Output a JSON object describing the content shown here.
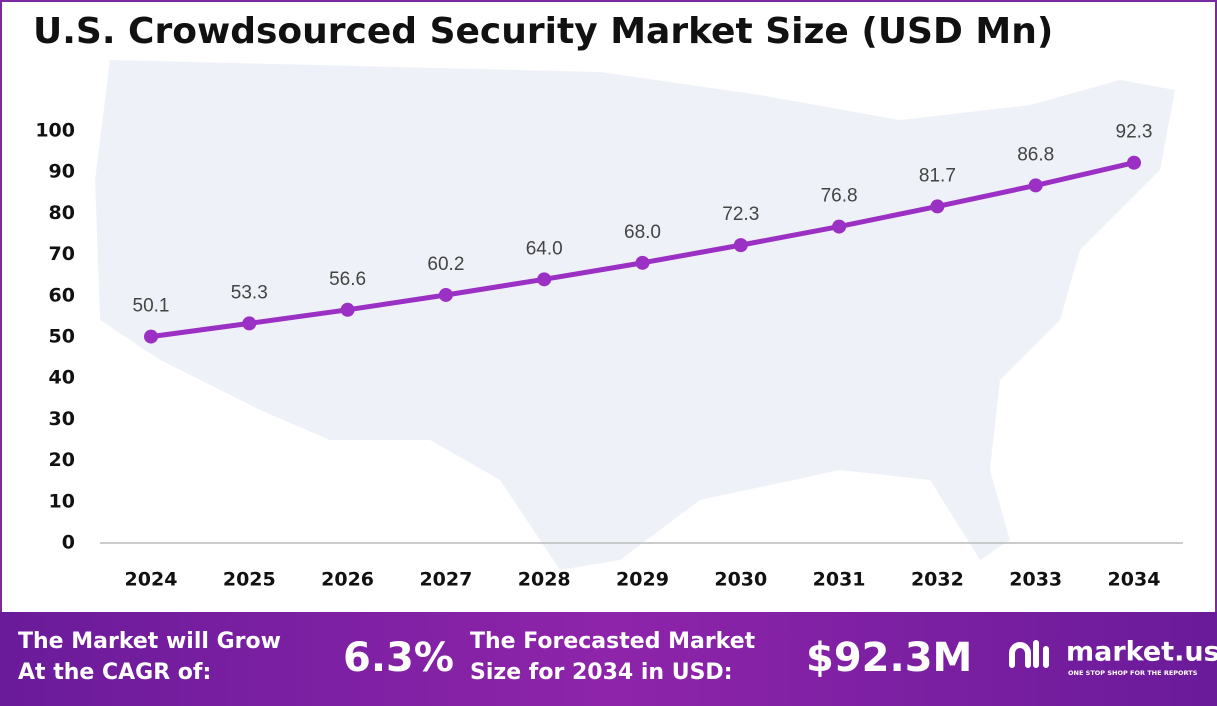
{
  "chart_data": {
    "type": "line",
    "title": "U.S. Crowdsourced Security Market Size (USD Mn)",
    "categories": [
      "2024",
      "2025",
      "2026",
      "2027",
      "2028",
      "2029",
      "2030",
      "2031",
      "2032",
      "2033",
      "2034"
    ],
    "series": [
      {
        "name": "Market Size",
        "color": "#9b30c4",
        "values": [
          50.1,
          53.3,
          56.6,
          60.2,
          64.0,
          68.0,
          72.3,
          76.8,
          81.7,
          86.8,
          92.3
        ],
        "value_labels": [
          "50.1",
          "53.3",
          "56.6",
          "60.2",
          "64.0",
          "68.0",
          "72.3",
          "76.8",
          "81.7",
          "86.8",
          "92.3"
        ]
      }
    ],
    "ylim": [
      0,
      100
    ],
    "yticks": [
      0,
      10,
      20,
      30,
      40,
      50,
      60,
      70,
      80,
      90,
      100
    ],
    "grid": false
  },
  "footer": {
    "cagr_label": [
      "The Market will Grow",
      "At the CAGR of:"
    ],
    "cagr_value": "6.3%",
    "forecast_label": [
      "The Forecasted Market",
      "Size for 2034 in USD:"
    ],
    "forecast_value": "$92.3M",
    "logo": "market.us",
    "logo_tagline": "ONE STOP SHOP FOR THE REPORTS"
  }
}
